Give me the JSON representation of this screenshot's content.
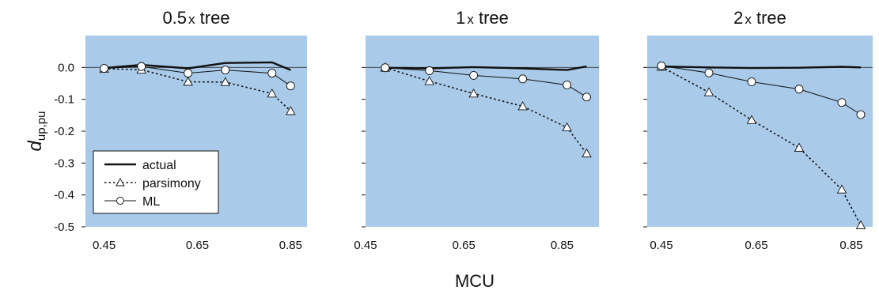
{
  "chart_data": {
    "type": "line",
    "ylabel_main": "d",
    "ylabel_sub": "up,pu",
    "xlabel": "MCU",
    "ylim": [
      -0.5,
      0.1
    ],
    "yticks": [
      "0.0",
      "-0.1",
      "-0.2",
      "-0.3",
      "-0.4",
      "-0.5"
    ],
    "ytick_values": [
      0.0,
      -0.1,
      -0.2,
      -0.3,
      -0.4,
      -0.5
    ],
    "legend": {
      "placement": "lower-left of first panel",
      "entries": [
        {
          "key": "actual",
          "label": "actual"
        },
        {
          "key": "parsimony",
          "label": "parsimony"
        },
        {
          "key": "ML",
          "label": "ML"
        }
      ]
    },
    "colors": {
      "background": "#a9cbe9",
      "line": "#111111",
      "marker_fill": "#ffffff"
    },
    "panels": [
      {
        "title_main": "0.5",
        "title_small": "x",
        "title_rest": " tree",
        "xlim": [
          0.41,
          0.885
        ],
        "xticks": [
          "0.45",
          "0.65",
          "0.85"
        ],
        "xtick_values": [
          0.45,
          0.65,
          0.85
        ],
        "series": [
          {
            "key": "actual",
            "x": [
              0.45,
              0.53,
              0.63,
              0.71,
              0.81,
              0.85
            ],
            "y": [
              -0.002,
              0.008,
              -0.003,
              0.014,
              0.016,
              -0.008
            ]
          },
          {
            "key": "parsimony",
            "x": [
              0.45,
              0.53,
              0.63,
              0.71,
              0.81,
              0.85
            ],
            "y": [
              -0.004,
              -0.007,
              -0.045,
              -0.046,
              -0.082,
              -0.137
            ]
          },
          {
            "key": "ML",
            "x": [
              0.45,
              0.53,
              0.63,
              0.71,
              0.81,
              0.85
            ],
            "y": [
              -0.003,
              0.003,
              -0.018,
              -0.008,
              -0.018,
              -0.058
            ]
          }
        ]
      },
      {
        "title_main": "1",
        "title_small": "x",
        "title_rest": " tree",
        "xlim": [
          0.45,
          0.925
        ],
        "xticks": [
          "0.45",
          "0.65",
          "0.85"
        ],
        "xtick_values": [
          0.45,
          0.65,
          0.85
        ],
        "series": [
          {
            "key": "actual",
            "x": [
              0.49,
              0.58,
              0.67,
              0.77,
              0.86,
              0.9
            ],
            "y": [
              -0.001,
              -0.003,
              0.001,
              -0.003,
              -0.008,
              0.003
            ]
          },
          {
            "key": "parsimony",
            "x": [
              0.49,
              0.58,
              0.67,
              0.77,
              0.86,
              0.9
            ],
            "y": [
              -0.001,
              -0.043,
              -0.082,
              -0.122,
              -0.188,
              -0.27
            ]
          },
          {
            "key": "ML",
            "x": [
              0.49,
              0.58,
              0.67,
              0.77,
              0.86,
              0.9
            ],
            "y": [
              -0.001,
              -0.01,
              -0.025,
              -0.036,
              -0.055,
              -0.093
            ]
          }
        ]
      },
      {
        "title_main": "2",
        "title_small": "x",
        "title_rest": " tree",
        "xlim": [
          0.42,
          0.895
        ],
        "xticks": [
          "0.45",
          "0.65",
          "0.85"
        ],
        "xtick_values": [
          0.45,
          0.65,
          0.85
        ],
        "series": [
          {
            "key": "actual",
            "x": [
              0.45,
              0.55,
              0.64,
              0.74,
              0.83,
              0.87
            ],
            "y": [
              0.003,
              0.0,
              -0.002,
              -0.001,
              0.002,
              0.0
            ]
          },
          {
            "key": "parsimony",
            "x": [
              0.45,
              0.55,
              0.64,
              0.74,
              0.83,
              0.87
            ],
            "y": [
              0.002,
              -0.078,
              -0.165,
              -0.252,
              -0.383,
              -0.495
            ]
          },
          {
            "key": "ML",
            "x": [
              0.45,
              0.55,
              0.64,
              0.74,
              0.83,
              0.87
            ],
            "y": [
              0.005,
              -0.017,
              -0.045,
              -0.068,
              -0.11,
              -0.148
            ]
          }
        ]
      }
    ]
  }
}
